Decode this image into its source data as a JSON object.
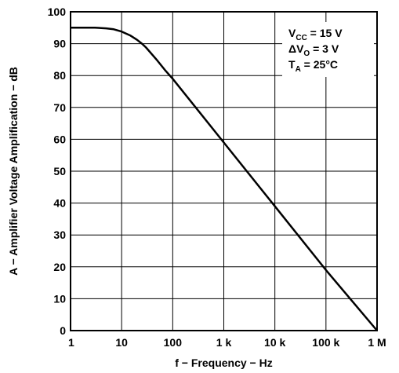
{
  "chart_data": {
    "type": "line",
    "xlabel": "f − Frequency − Hz",
    "ylabel": "A − Amplifier Voltage Amplification − dB",
    "x_scale": "log",
    "xlim": [
      1,
      1000000
    ],
    "ylim": [
      0,
      100
    ],
    "grid": true,
    "x_ticks": [
      {
        "value": 1,
        "label": "1"
      },
      {
        "value": 10,
        "label": "10"
      },
      {
        "value": 100,
        "label": "100"
      },
      {
        "value": 1000,
        "label": "1 k"
      },
      {
        "value": 10000,
        "label": "10 k"
      },
      {
        "value": 100000,
        "label": "100 k"
      },
      {
        "value": 1000000,
        "label": "1 M"
      }
    ],
    "y_ticks": [
      {
        "value": 0,
        "label": "0"
      },
      {
        "value": 10,
        "label": "10"
      },
      {
        "value": 20,
        "label": "20"
      },
      {
        "value": 30,
        "label": "30"
      },
      {
        "value": 40,
        "label": "40"
      },
      {
        "value": 50,
        "label": "50"
      },
      {
        "value": 60,
        "label": "60"
      },
      {
        "value": 70,
        "label": "70"
      },
      {
        "value": 80,
        "label": "80"
      },
      {
        "value": 90,
        "label": "90"
      },
      {
        "value": 100,
        "label": "100"
      }
    ],
    "series": [
      {
        "x": [
          1,
          2,
          3,
          5,
          7,
          10,
          15,
          20,
          25,
          30,
          40,
          50,
          70,
          100,
          1000,
          10000,
          100000,
          1000000
        ],
        "y": [
          95,
          95,
          95,
          94.8,
          94.5,
          93.8,
          92.5,
          91.2,
          90,
          88.8,
          86.5,
          84.7,
          81.8,
          79,
          59,
          39,
          19,
          0
        ]
      }
    ],
    "annotations": [
      {
        "main": "V",
        "sub": "CC",
        "rest": " = 15 V"
      },
      {
        "main": "ΔV",
        "sub": "O",
        "rest": " = 3 V"
      },
      {
        "main": "T",
        "sub": "A",
        "rest": " = 25°C"
      }
    ]
  }
}
